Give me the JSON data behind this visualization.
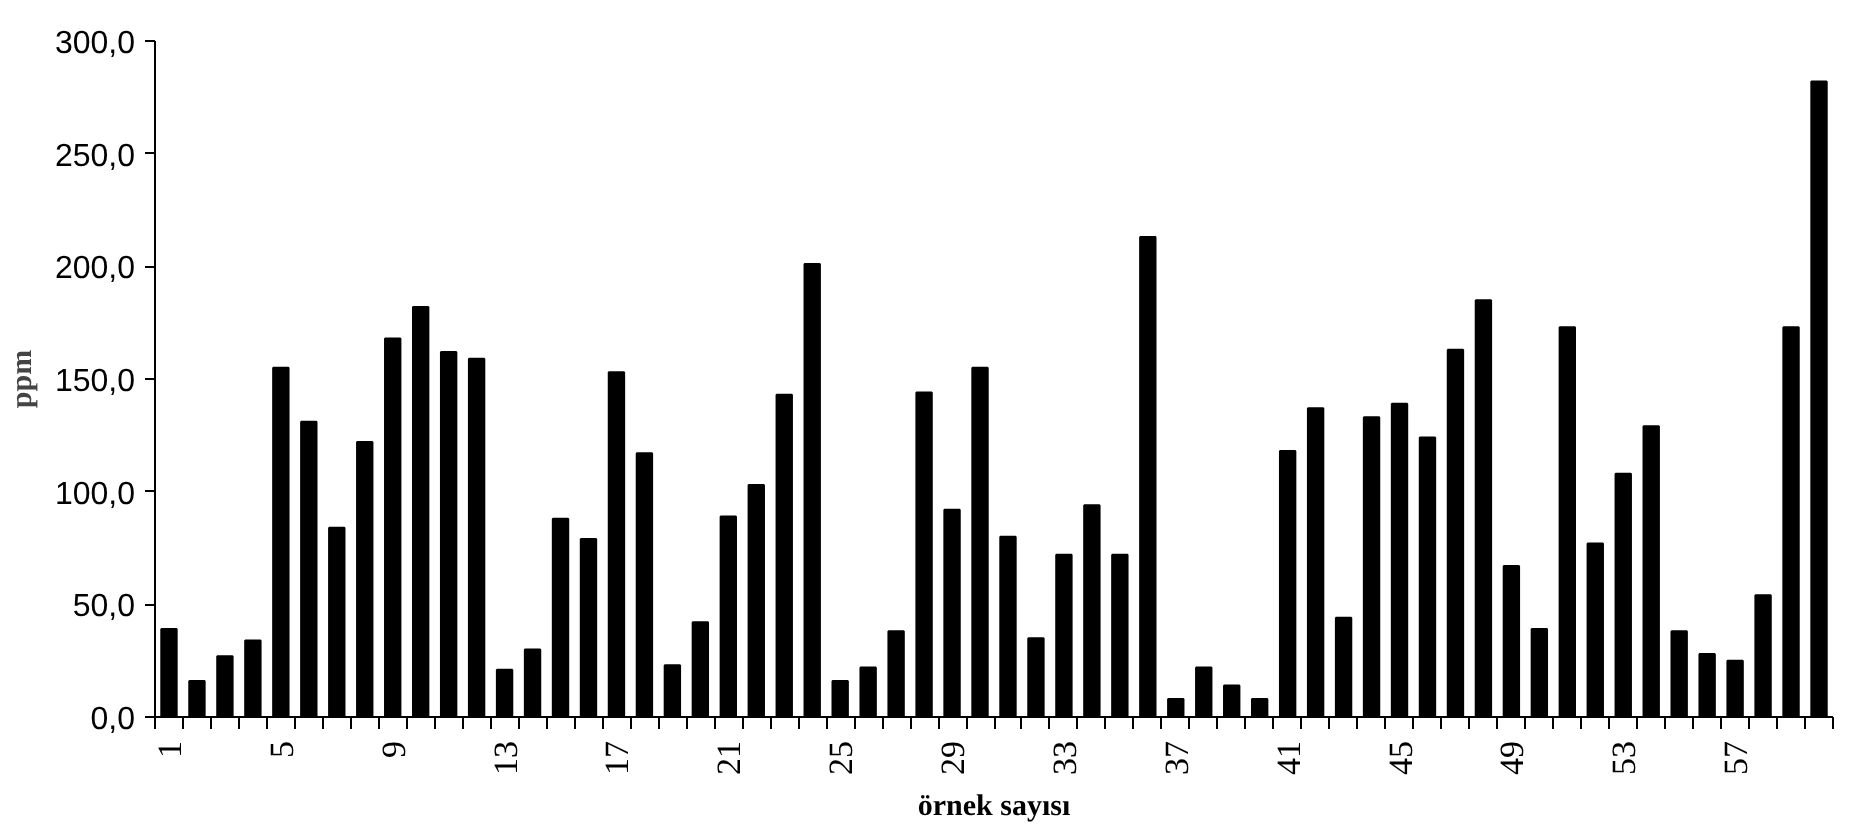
{
  "chart_data": {
    "type": "bar",
    "xlabel": "örnek sayısı",
    "ylabel": "ppm",
    "categories": [
      "1",
      null,
      null,
      null,
      "5",
      null,
      null,
      null,
      "9",
      null,
      null,
      null,
      "13",
      null,
      null,
      null,
      "17",
      null,
      null,
      null,
      "21",
      null,
      null,
      null,
      "25",
      null,
      null,
      null,
      "29",
      null,
      null,
      null,
      "33",
      null,
      null,
      null,
      "37",
      null,
      null,
      null,
      "41",
      null,
      null,
      null,
      "45",
      null,
      null,
      null,
      "49",
      null,
      null,
      null,
      "53",
      null,
      null,
      null,
      "57",
      null,
      null,
      null
    ],
    "values": [
      39,
      16,
      27,
      34,
      155,
      131,
      84,
      122,
      168,
      182,
      162,
      159,
      21,
      30,
      88,
      79,
      153,
      117,
      23,
      42,
      89,
      103,
      143,
      201,
      16,
      22,
      38,
      144,
      92,
      155,
      80,
      35,
      72,
      94,
      72,
      213,
      8,
      22,
      14,
      8,
      118,
      137,
      44,
      133,
      139,
      124,
      163,
      185,
      67,
      39,
      173,
      77,
      108,
      129,
      38,
      28,
      25,
      54,
      173,
      282
    ],
    "color": "#000000",
    "ylim": [
      0,
      300
    ],
    "yticks": [
      {
        "value": 0,
        "label": "0,0"
      },
      {
        "value": 50,
        "label": "50,0"
      },
      {
        "value": 100,
        "label": "100,0"
      },
      {
        "value": 150,
        "label": "150,0"
      },
      {
        "value": 200,
        "label": "200,0"
      },
      {
        "value": 250,
        "label": "250,0"
      },
      {
        "value": 300,
        "label": "300,0"
      }
    ],
    "grid": false
  }
}
